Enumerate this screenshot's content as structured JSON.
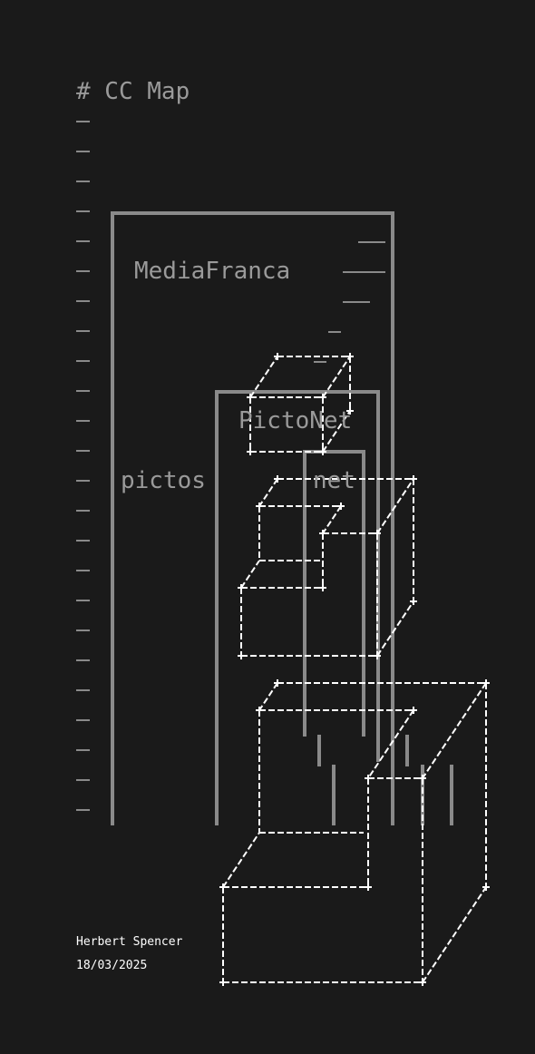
{
  "title": "# CC Map",
  "zones": {
    "mediafranca": "MediaFranca",
    "pictonet": "PictoNet",
    "pictos": "pictos",
    "net": "net"
  },
  "author": "Herbert Spencer",
  "date": "18/03/2025",
  "colors": {
    "background": "#1a1a1a",
    "frame": "#8a8a8a",
    "label": "#9a9a9a",
    "cubes": "#ffffff"
  }
}
